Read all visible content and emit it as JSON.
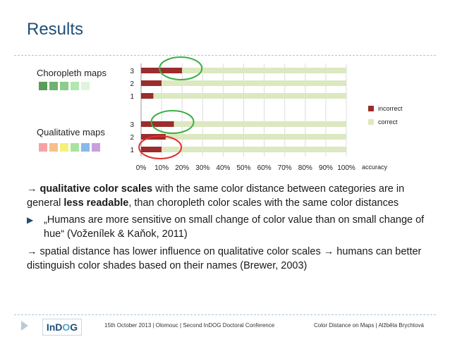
{
  "slide": {
    "title": "Results"
  },
  "chart_data": {
    "type": "bar",
    "orientation": "horizontal",
    "stacked": true,
    "groups": [
      {
        "name": "Choropleth maps",
        "swatch_colors": [
          "#5a9d5a",
          "#6fb26f",
          "#8ccc8c",
          "#b3e6b3",
          "#ddf5dd"
        ],
        "categories": [
          "3",
          "2",
          "1"
        ],
        "series": [
          {
            "name": "incorrect",
            "values": [
              20,
              10,
              6
            ]
          },
          {
            "name": "correct",
            "values": [
              80,
              90,
              94
            ]
          }
        ]
      },
      {
        "name": "Qualitative maps",
        "swatch_colors": [
          "#f7a3a3",
          "#f7c08a",
          "#f5f07a",
          "#a8e3a0",
          "#8ab8e8",
          "#c8a0e0"
        ],
        "categories": [
          "3",
          "2",
          "1"
        ],
        "series": [
          {
            "name": "incorrect",
            "values": [
              16,
              12,
              10
            ]
          },
          {
            "name": "correct",
            "values": [
              84,
              88,
              90
            ]
          }
        ]
      }
    ],
    "x_ticks": [
      "0%",
      "10%",
      "20%",
      "30%",
      "40%",
      "50%",
      "60%",
      "70%",
      "80%",
      "90%",
      "100%"
    ],
    "xlabel": "accuracy",
    "xlim": [
      0,
      100
    ],
    "legend": [
      "incorrect",
      "correct"
    ],
    "legend_position": "right",
    "colors": {
      "incorrect": "#9b2d2d",
      "correct": "#dce8c0",
      "grid": "#dcdcdc"
    },
    "annotations": [
      {
        "type": "circle",
        "color": "#3cb043",
        "group": 0,
        "category": "3"
      },
      {
        "type": "circle",
        "color": "#3cb043",
        "group": 1,
        "category": "3"
      },
      {
        "type": "circle",
        "color": "#e03030",
        "group": 1,
        "category": "1"
      }
    ]
  },
  "text": {
    "p1_arrow": "→",
    "p1_bold1": "qualitative color scales",
    "p1_mid": " with the same color distance between categories are in general ",
    "p1_bold2": "less readable",
    "p1_end": ", than choropleth color scales with the same color distances",
    "bullet": "„Humans are more sensitive on small change of color value than on small change of hue“ (Voženílek & Kaňok, 2011)",
    "p2_arrow1": "→",
    "p2_mid": " spatial distance has lower influence on qualitative color scales ",
    "p2_arrow2": "→",
    "p2_end": " humans can better distinguish color shades based on their names (Brewer, 2003)"
  },
  "footer": {
    "logo_a": "InD",
    "logo_o": "O",
    "logo_b": "G",
    "left": "15th October 2013 | Olomouc | Second InDOG Doctoral Conference",
    "right": "Color Distance on Maps | Alžběta Brychtová"
  }
}
